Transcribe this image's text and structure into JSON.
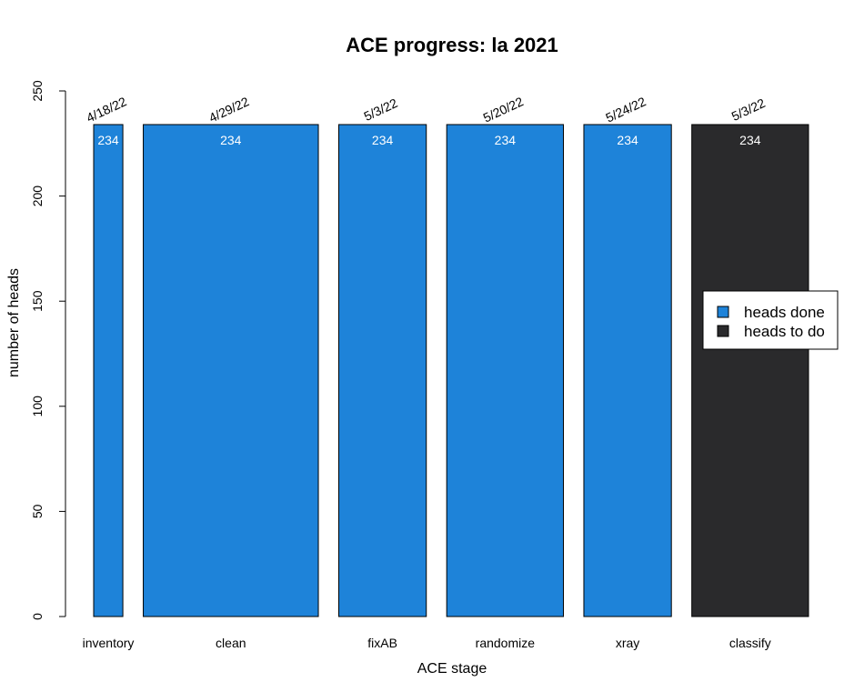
{
  "chart_data": {
    "type": "bar",
    "title": "ACE progress: la 2021",
    "xlabel": "ACE stage",
    "ylabel": "number of heads",
    "ylim": [
      0,
      250
    ],
    "yticks": [
      0,
      50,
      100,
      150,
      200,
      250
    ],
    "categories": [
      "inventory",
      "clean",
      "fixAB",
      "randomize",
      "xray",
      "classify"
    ],
    "bar_width_weights": [
      1,
      6,
      3,
      4,
      3,
      4
    ],
    "values": [
      234,
      234,
      234,
      234,
      234,
      234
    ],
    "value_labels": [
      "234",
      "234",
      "234",
      "234",
      "234",
      "234"
    ],
    "dates": [
      "4/18/22",
      "4/29/22",
      "5/3/22",
      "5/20/22",
      "5/24/22",
      "5/3/22"
    ],
    "bar_status": [
      "heads done",
      "heads done",
      "heads done",
      "heads done",
      "heads done",
      "heads to do"
    ],
    "legend": {
      "position": "right",
      "entries": [
        {
          "label": "heads done",
          "color": "#1e83d9"
        },
        {
          "label": "heads to do",
          "color": "#2a2a2c"
        }
      ]
    },
    "colors": {
      "done": "#1e83d9",
      "todo": "#2a2a2c"
    },
    "grid": false
  }
}
